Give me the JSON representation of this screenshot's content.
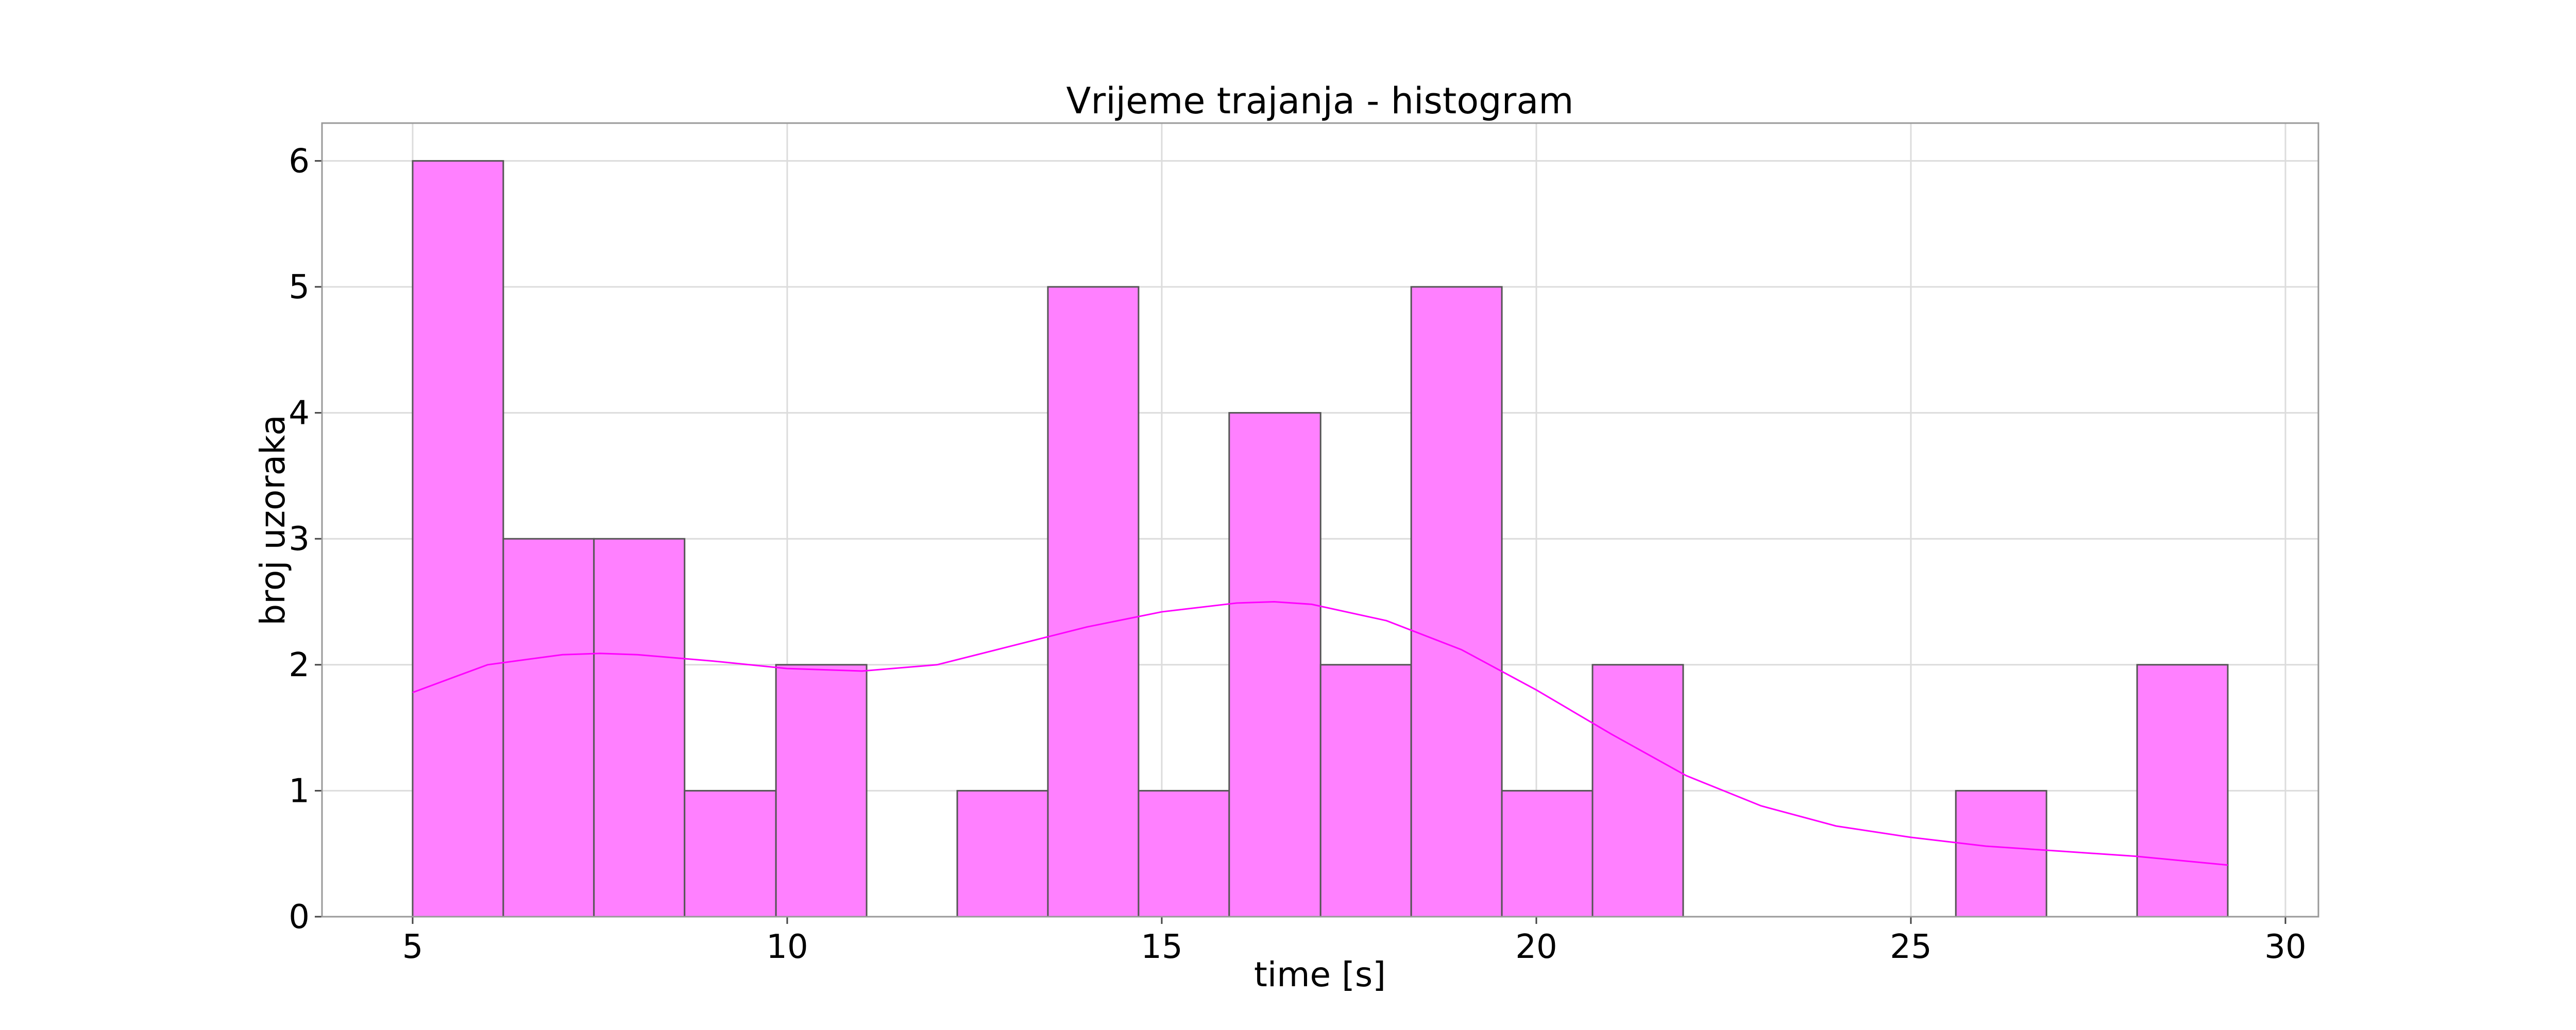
{
  "chart_data": {
    "type": "histogram",
    "title": "Vrijeme trajanja - histogram",
    "xlabel": "time [s]",
    "ylabel": "broj uzoraka",
    "bins": [
      5,
      6.21,
      7.42,
      8.63,
      9.85,
      11.06,
      12.27,
      13.48,
      14.69,
      15.9,
      17.12,
      18.33,
      19.54,
      20.75,
      21.96,
      23.17,
      24.38,
      25.6,
      26.81,
      28.02,
      29.23
    ],
    "values": [
      6,
      3,
      3,
      1,
      2,
      0,
      1,
      5,
      1,
      4,
      2,
      5,
      1,
      2,
      0,
      0,
      0,
      1,
      0,
      2
    ],
    "color": "#ff80ff",
    "edgecolor": "#555555",
    "line": {
      "color": "#ff00ff",
      "x": [
        5,
        6,
        7,
        7.5,
        8,
        9,
        10,
        11,
        12,
        13,
        14,
        15,
        16,
        16.5,
        17,
        18,
        19,
        20,
        21,
        22,
        23,
        24,
        25,
        26,
        27,
        28,
        29.23
      ],
      "values": [
        1.78,
        2.0,
        2.08,
        2.09,
        2.08,
        2.03,
        1.97,
        1.95,
        2.0,
        2.15,
        2.3,
        2.42,
        2.49,
        2.5,
        2.48,
        2.35,
        2.12,
        1.8,
        1.45,
        1.12,
        0.88,
        0.72,
        0.63,
        0.56,
        0.52,
        0.48,
        0.41
      ]
    },
    "xlim": [
      3.79,
      30.44
    ],
    "ylim": [
      0,
      6.3
    ],
    "xticks": [
      5,
      10,
      15,
      20,
      25,
      30
    ],
    "yticks": [
      0,
      1,
      2,
      3,
      4,
      5,
      6
    ],
    "grid": true
  }
}
